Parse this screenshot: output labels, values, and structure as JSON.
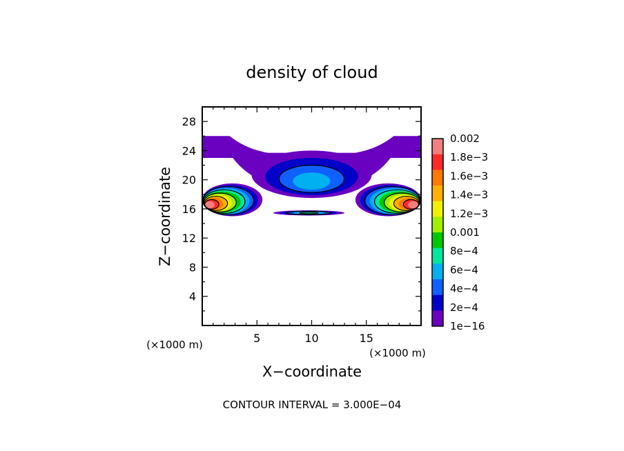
{
  "chart_data": {
    "type": "heatmap",
    "title": "density of cloud",
    "xlabel": "X−coordinate",
    "ylabel": "Z−coordinate",
    "x_unit_label_left": "(×1000 m)",
    "x_unit_label_right": "(×1000 m)",
    "footer": "CONTOUR INTERVAL = 3.000E−04",
    "xlim": [
      0,
      20
    ],
    "ylim": [
      0,
      30
    ],
    "x_ticks": [
      5,
      10,
      15
    ],
    "x_tick_labels": [
      "5",
      "10",
      "15"
    ],
    "y_ticks": [
      4,
      8,
      12,
      16,
      20,
      24,
      28
    ],
    "y_tick_labels": [
      "4",
      "8",
      "12",
      "16",
      "20",
      "24",
      "28"
    ],
    "grid": false,
    "colorbar": {
      "labels": [
        "0.002",
        "1.8e−3",
        "1.6e−3",
        "1.4e−3",
        "1.2e−3",
        "0.001",
        "8e−4",
        "6e−4",
        "4e−4",
        "2e−4",
        "1e−16"
      ],
      "colors": [
        "#f08080",
        "#ff2a2a",
        "#ff7a00",
        "#ffb000",
        "#f0f000",
        "#a0f000",
        "#00c800",
        "#00e8a0",
        "#00b0f0",
        "#1060ff",
        "#0000c8",
        "#6a00c0"
      ]
    },
    "regions": [
      {
        "name": "upper-layer",
        "x": [
          0,
          20
        ],
        "z": [
          23,
          26
        ],
        "level": 0
      },
      {
        "name": "center-core",
        "x": [
          4.5,
          15.5
        ],
        "z": [
          17.5,
          24
        ],
        "level": 3,
        "peak_x": 10,
        "peak_z": 19.5
      },
      {
        "name": "left-lobe",
        "x": [
          0,
          5.5
        ],
        "z": [
          15,
          19.5
        ],
        "level": 11,
        "peak_x": 0.5,
        "peak_z": 16.5
      },
      {
        "name": "right-lobe",
        "x": [
          14,
          20
        ],
        "z": [
          15,
          19.5
        ],
        "level": 11,
        "peak_x": 19.5,
        "peak_z": 16.5
      },
      {
        "name": "thin-band",
        "x": [
          6.5,
          13
        ],
        "z": [
          15.1,
          15.8
        ],
        "level": 4
      }
    ]
  }
}
